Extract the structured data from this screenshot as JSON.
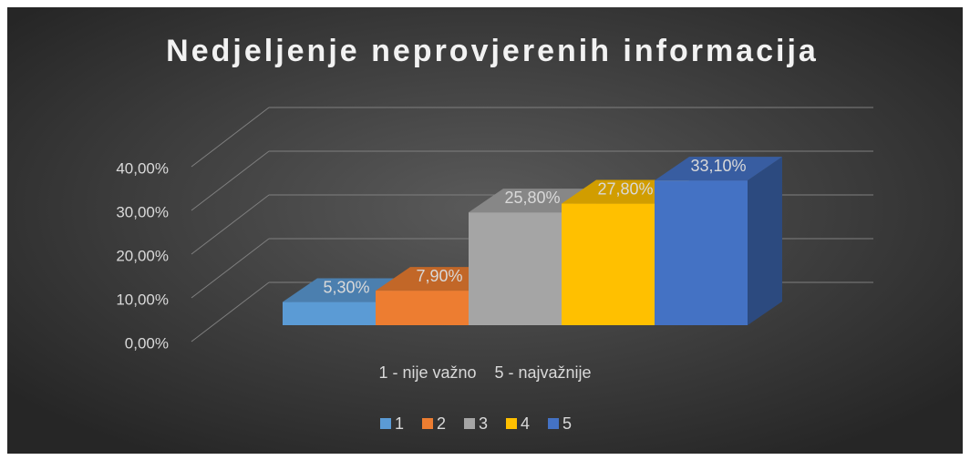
{
  "chart_data": {
    "type": "bar3d",
    "title": "Nedjeljenje neprovjerenih informacija",
    "categories": [
      "1 - nije važno    5 - najvažnije"
    ],
    "series": [
      {
        "name": "1",
        "color": "#5b9bd5",
        "values": [
          5.3
        ],
        "value_labels": [
          "5,30%"
        ]
      },
      {
        "name": "2",
        "color": "#ed7d31",
        "values": [
          7.9
        ],
        "value_labels": [
          "7,90%"
        ]
      },
      {
        "name": "3",
        "color": "#a5a5a5",
        "values": [
          25.8
        ],
        "value_labels": [
          "25,80%"
        ]
      },
      {
        "name": "4",
        "color": "#ffc000",
        "values": [
          27.8
        ],
        "value_labels": [
          "27,80%"
        ]
      },
      {
        "name": "5",
        "color": "#4472c4",
        "values": [
          33.1
        ],
        "value_labels": [
          "33,10%"
        ]
      }
    ],
    "ylim": [
      0,
      40
    ],
    "yticks": [
      {
        "value": 0,
        "label": "0,00%"
      },
      {
        "value": 10,
        "label": "10,00%"
      },
      {
        "value": 20,
        "label": "20,00%"
      },
      {
        "value": 30,
        "label": "30,00%"
      },
      {
        "value": 40,
        "label": "40,00%"
      }
    ],
    "grid": true,
    "legend": "bottom"
  }
}
